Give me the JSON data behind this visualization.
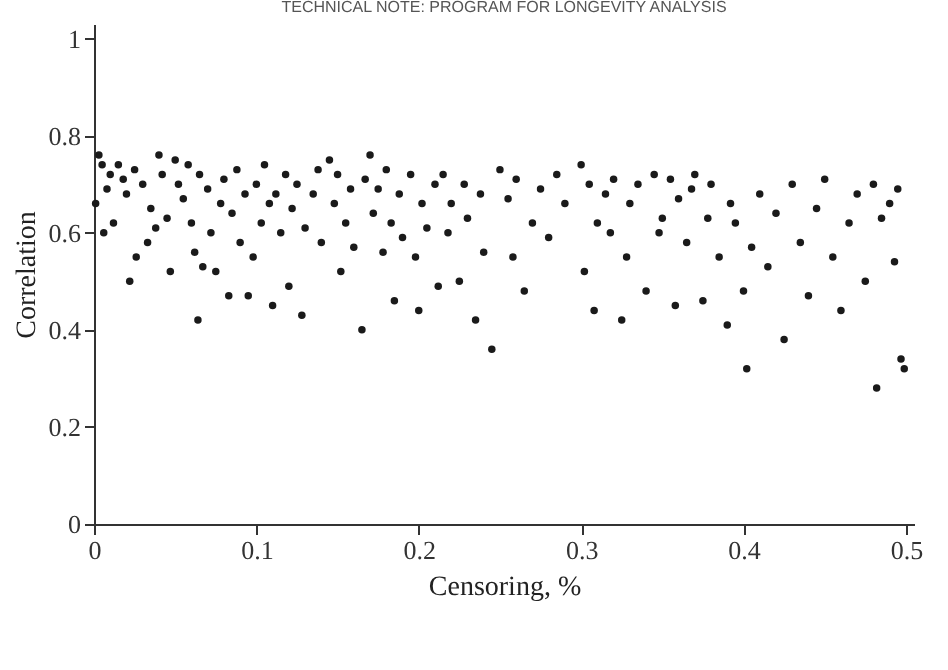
{
  "chart_data": {
    "type": "scatter",
    "xlabel": "Censoring, %",
    "ylabel": "Correlation",
    "annotations": [
      "TECHNICAL NOTE: PROGRAM FOR LONGEVITY ANALYSIS"
    ],
    "xlim": [
      0,
      0.505
    ],
    "ylim": [
      0,
      1.03
    ],
    "xticks": [
      0,
      0.1,
      0.2,
      0.3,
      0.4,
      0.5
    ],
    "yticks": [
      0,
      0.2,
      0.4,
      0.6,
      0.8,
      1
    ],
    "grid": false,
    "color": "#1a1a1a",
    "x": [
      0.001,
      0.003,
      0.005,
      0.006,
      0.008,
      0.01,
      0.012,
      0.015,
      0.018,
      0.02,
      0.022,
      0.025,
      0.026,
      0.03,
      0.033,
      0.035,
      0.038,
      0.04,
      0.042,
      0.045,
      0.047,
      0.05,
      0.052,
      0.055,
      0.058,
      0.06,
      0.062,
      0.064,
      0.065,
      0.067,
      0.07,
      0.072,
      0.075,
      0.078,
      0.08,
      0.083,
      0.085,
      0.088,
      0.09,
      0.093,
      0.095,
      0.098,
      0.1,
      0.103,
      0.105,
      0.108,
      0.11,
      0.112,
      0.115,
      0.118,
      0.12,
      0.122,
      0.125,
      0.128,
      0.13,
      0.135,
      0.138,
      0.14,
      0.145,
      0.148,
      0.15,
      0.152,
      0.155,
      0.158,
      0.16,
      0.165,
      0.167,
      0.17,
      0.172,
      0.175,
      0.178,
      0.18,
      0.183,
      0.185,
      0.188,
      0.19,
      0.195,
      0.198,
      0.2,
      0.202,
      0.205,
      0.21,
      0.212,
      0.215,
      0.218,
      0.22,
      0.225,
      0.228,
      0.23,
      0.235,
      0.238,
      0.24,
      0.245,
      0.25,
      0.255,
      0.258,
      0.26,
      0.265,
      0.27,
      0.275,
      0.28,
      0.285,
      0.29,
      0.3,
      0.302,
      0.305,
      0.308,
      0.31,
      0.315,
      0.318,
      0.32,
      0.325,
      0.328,
      0.33,
      0.335,
      0.34,
      0.345,
      0.348,
      0.35,
      0.355,
      0.358,
      0.36,
      0.365,
      0.368,
      0.37,
      0.375,
      0.378,
      0.38,
      0.385,
      0.39,
      0.392,
      0.395,
      0.4,
      0.402,
      0.405,
      0.41,
      0.415,
      0.42,
      0.425,
      0.43,
      0.435,
      0.44,
      0.445,
      0.45,
      0.455,
      0.46,
      0.465,
      0.47,
      0.475,
      0.48,
      0.482,
      0.485,
      0.49,
      0.493,
      0.495,
      0.497,
      0.499
    ],
    "values": [
      0.66,
      0.76,
      0.74,
      0.6,
      0.69,
      0.72,
      0.62,
      0.74,
      0.71,
      0.68,
      0.5,
      0.73,
      0.55,
      0.7,
      0.58,
      0.65,
      0.61,
      0.76,
      0.72,
      0.63,
      0.52,
      0.75,
      0.7,
      0.67,
      0.74,
      0.62,
      0.56,
      0.42,
      0.72,
      0.53,
      0.69,
      0.6,
      0.52,
      0.66,
      0.71,
      0.47,
      0.64,
      0.73,
      0.58,
      0.68,
      0.47,
      0.55,
      0.7,
      0.62,
      0.74,
      0.66,
      0.45,
      0.68,
      0.6,
      0.72,
      0.49,
      0.65,
      0.7,
      0.43,
      0.61,
      0.68,
      0.73,
      0.58,
      0.75,
      0.66,
      0.72,
      0.52,
      0.62,
      0.69,
      0.57,
      0.4,
      0.71,
      0.76,
      0.64,
      0.69,
      0.56,
      0.73,
      0.62,
      0.46,
      0.68,
      0.59,
      0.72,
      0.55,
      0.44,
      0.66,
      0.61,
      0.7,
      0.49,
      0.72,
      0.6,
      0.66,
      0.5,
      0.7,
      0.63,
      0.42,
      0.68,
      0.56,
      0.36,
      0.73,
      0.67,
      0.55,
      0.71,
      0.48,
      0.62,
      0.69,
      0.59,
      0.72,
      0.66,
      0.74,
      0.52,
      0.7,
      0.44,
      0.62,
      0.68,
      0.6,
      0.71,
      0.42,
      0.55,
      0.66,
      0.7,
      0.48,
      0.72,
      0.6,
      0.63,
      0.71,
      0.45,
      0.67,
      0.58,
      0.69,
      0.72,
      0.46,
      0.63,
      0.7,
      0.55,
      0.41,
      0.66,
      0.62,
      0.48,
      0.32,
      0.57,
      0.68,
      0.53,
      0.64,
      0.38,
      0.7,
      0.58,
      0.47,
      0.65,
      0.71,
      0.55,
      0.44,
      0.62,
      0.68,
      0.5,
      0.7,
      0.28,
      0.63,
      0.66,
      0.54,
      0.69,
      0.34,
      0.32
    ]
  }
}
